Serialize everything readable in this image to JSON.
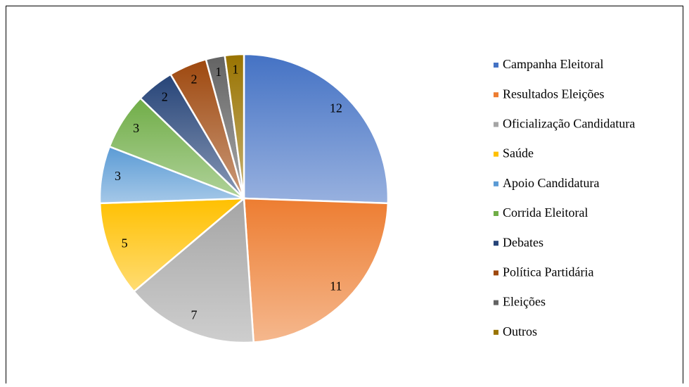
{
  "chart_data": {
    "type": "pie",
    "categories": [
      "Campanha Eleitoral",
      "Resultados Eleições",
      "Oficialização Candidatura",
      "Saúde",
      "Apoio Candidatura",
      "Corrida Eleitoral",
      "Debates",
      "Política Partidária",
      "Eleições",
      "Outros"
    ],
    "values": [
      12,
      11,
      7,
      5,
      3,
      3,
      2,
      2,
      1,
      1
    ],
    "colors": [
      "#4472c4",
      "#ed7d31",
      "#a5a5a5",
      "#ffc000",
      "#5b9bd5",
      "#70ad47",
      "#264478",
      "#9e480e",
      "#636363",
      "#997300"
    ],
    "legend": "right"
  }
}
